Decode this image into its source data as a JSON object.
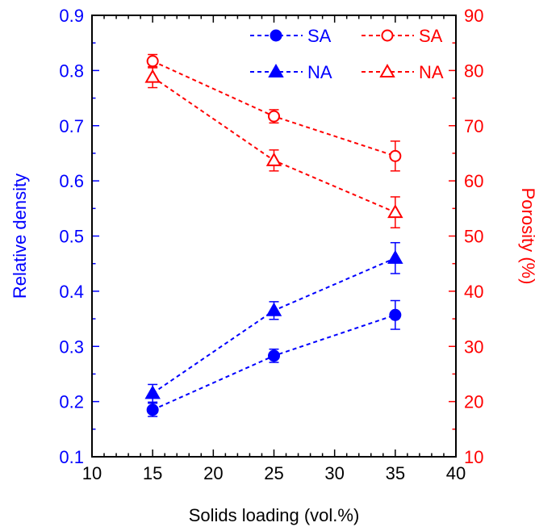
{
  "chart_data": {
    "type": "line",
    "xlabel": "Solids loading (vol.%)",
    "ylabel_left": "Relative density",
    "ylabel_right": "Porosity (%)",
    "xlim": [
      10,
      40
    ],
    "ylim_left": [
      0.1,
      0.9
    ],
    "ylim_right": [
      10,
      90
    ],
    "x_ticks": [
      "10",
      "15",
      "20",
      "25",
      "30",
      "35",
      "40"
    ],
    "y_ticks_left": [
      "0.1",
      "0.2",
      "0.3",
      "0.4",
      "0.5",
      "0.6",
      "0.7",
      "0.8",
      "0.9"
    ],
    "y_ticks_right": [
      "10",
      "20",
      "30",
      "40",
      "50",
      "60",
      "70",
      "80",
      "90"
    ],
    "grid": false,
    "legend_position": "top-right",
    "colors": {
      "left_axis": "#0000ff",
      "right_axis": "#ff0000",
      "frame": "#000000"
    },
    "series": [
      {
        "name": "SA",
        "axis": "left",
        "marker": "filled-circle",
        "color": "#0000ff",
        "x": [
          15,
          25,
          35
        ],
        "y": [
          0.185,
          0.283,
          0.357
        ],
        "err": [
          0.012,
          0.012,
          0.026
        ]
      },
      {
        "name": "NA",
        "axis": "left",
        "marker": "filled-triangle",
        "color": "#0000ff",
        "x": [
          15,
          25,
          35
        ],
        "y": [
          0.215,
          0.365,
          0.46
        ],
        "err": [
          0.016,
          0.016,
          0.028
        ]
      },
      {
        "name": "SA",
        "axis": "right",
        "marker": "open-circle",
        "color": "#ff0000",
        "x": [
          15,
          25,
          35
        ],
        "y": [
          81.7,
          71.7,
          64.5
        ],
        "err": [
          1.2,
          1.2,
          2.7
        ]
      },
      {
        "name": "NA",
        "axis": "right",
        "marker": "open-triangle",
        "color": "#ff0000",
        "x": [
          15,
          25,
          35
        ],
        "y": [
          78.8,
          63.7,
          54.3
        ],
        "err": [
          1.9,
          1.9,
          2.8
        ]
      }
    ]
  }
}
